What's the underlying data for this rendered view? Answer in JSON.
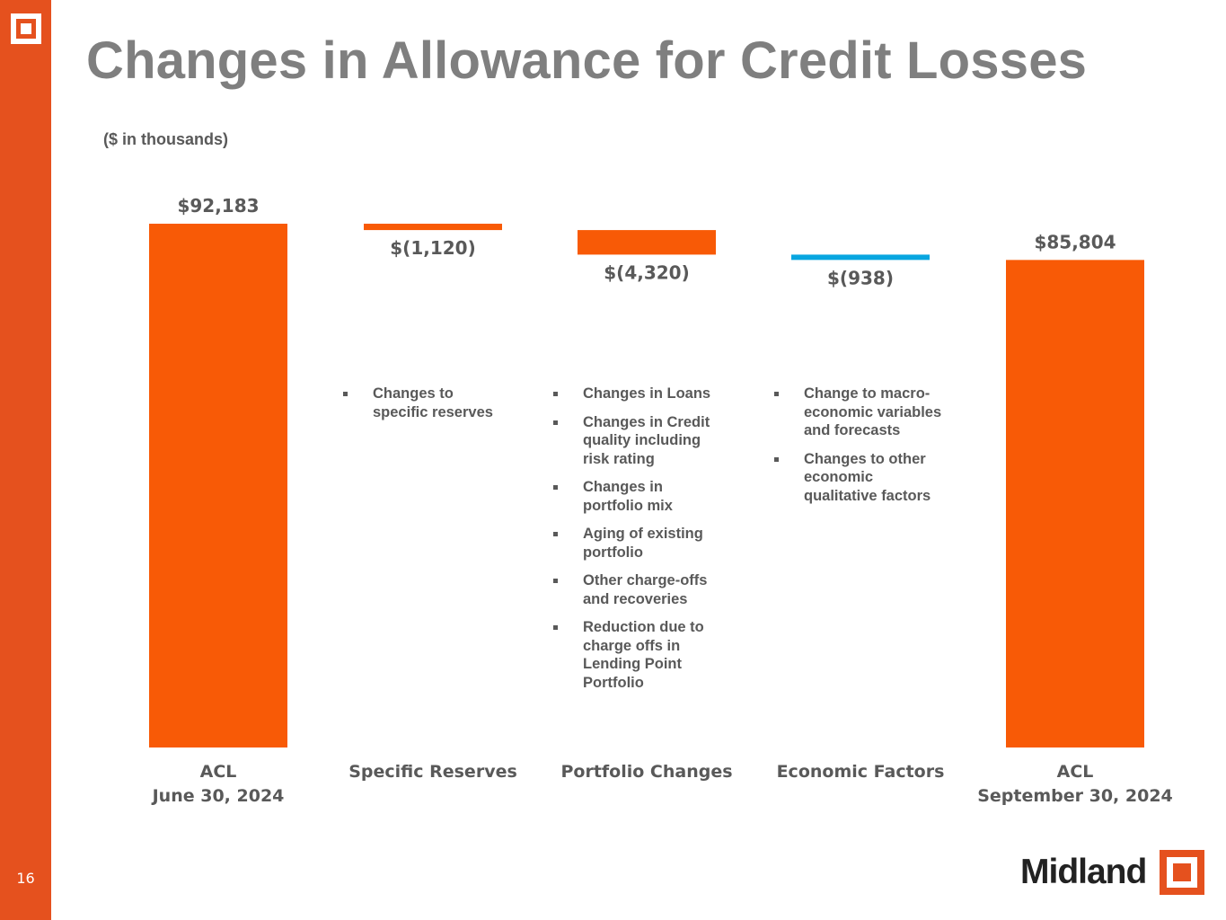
{
  "page": {
    "title": "Changes in Allowance for Credit Losses",
    "subtitle": "($ in thousands)",
    "page_number": "16",
    "brand": "Midland"
  },
  "colors": {
    "sidebar": "#e5511e",
    "bar_primary": "#f85a06",
    "bar_secondary": "#08a6e0",
    "text_gray": "#595959",
    "title_gray": "#7f7f7f"
  },
  "notes": {
    "specific": [
      "Changes to specific reserves"
    ],
    "portfolio": [
      "Changes in Loans",
      "Changes in Credit quality including risk rating",
      "Changes in portfolio mix",
      "Aging of existing portfolio",
      "Other charge-offs and recoveries",
      "Reduction due to charge offs in Lending Point Portfolio"
    ],
    "economic": [
      "Change to macro-economic variables and forecasts",
      "Changes to other economic qualitative factors"
    ]
  },
  "chart_data": {
    "type": "bar",
    "subtype": "waterfall",
    "title": "Changes in Allowance for Credit Losses",
    "units": "$ in thousands",
    "categories": [
      [
        "ACL",
        "June 30, 2024"
      ],
      [
        "Specific Reserves"
      ],
      [
        "Portfolio Changes"
      ],
      [
        "Economic Factors"
      ],
      [
        "ACL",
        "September 30, 2024"
      ]
    ],
    "values": [
      92183,
      -1120,
      -4320,
      -938,
      85804
    ],
    "kinds": [
      "total",
      "delta",
      "delta",
      "delta",
      "total"
    ],
    "labels": [
      "$92,183",
      "$(1,120)",
      "$(4,320)",
      "$(938)",
      "$85,804"
    ],
    "bar_colors": [
      "#f85a06",
      "#f85a06",
      "#f85a06",
      "#08a6e0",
      "#f85a06"
    ],
    "ylim": [
      0,
      92183
    ],
    "grid": false,
    "legend": "none"
  }
}
